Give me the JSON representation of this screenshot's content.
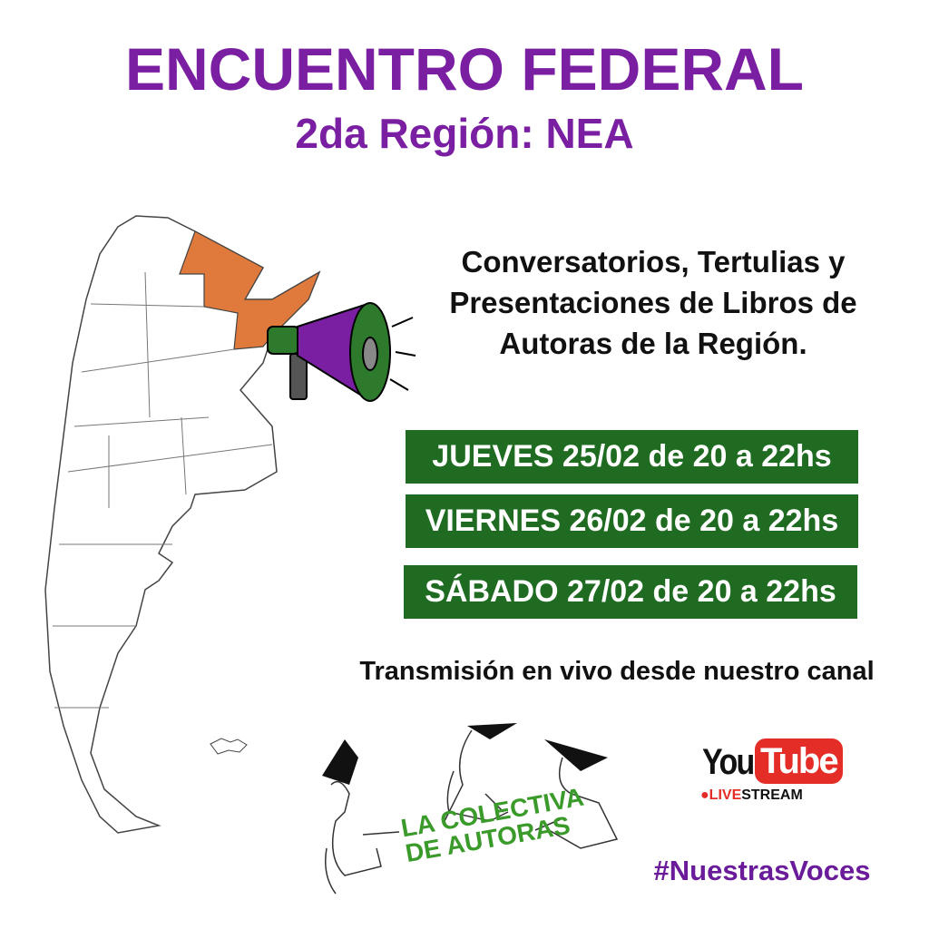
{
  "header": {
    "title": "ENCUENTRO FEDERAL",
    "subtitle": "2da Región: NEA"
  },
  "description": {
    "lines": [
      "Conversatorios, Tertulias y",
      "Presentaciones de Libros de",
      "Autoras de la Región."
    ]
  },
  "dates": [
    {
      "label": "JUEVES 25/02 de 20 a 22hs"
    },
    {
      "label": "VIERNES 26/02 de 20 a 22hs"
    },
    {
      "label": "SÁBADO 27/02 de 20 a 22hs"
    }
  ],
  "broadcast": "Transmisión en vivo desde nuestro canal",
  "youtube": {
    "you": "You",
    "tube": "Tube",
    "live_dot": "●",
    "live": "LIVE",
    "stream": "STREAM"
  },
  "logo": {
    "line1": "LA COLECTIVA",
    "line2": "DE AUTORAS"
  },
  "hashtag": "#NuestrasVoces",
  "colors": {
    "title": "#7b1fa2",
    "date_box": "#1f6b21",
    "highlight_region": "#e07a3c",
    "megaphone": "#7b1fa2",
    "youtube_red": "#e52d27"
  },
  "icons": [
    "argentina-map",
    "megaphone-icon",
    "youtube-logo",
    "writers-illustration"
  ]
}
